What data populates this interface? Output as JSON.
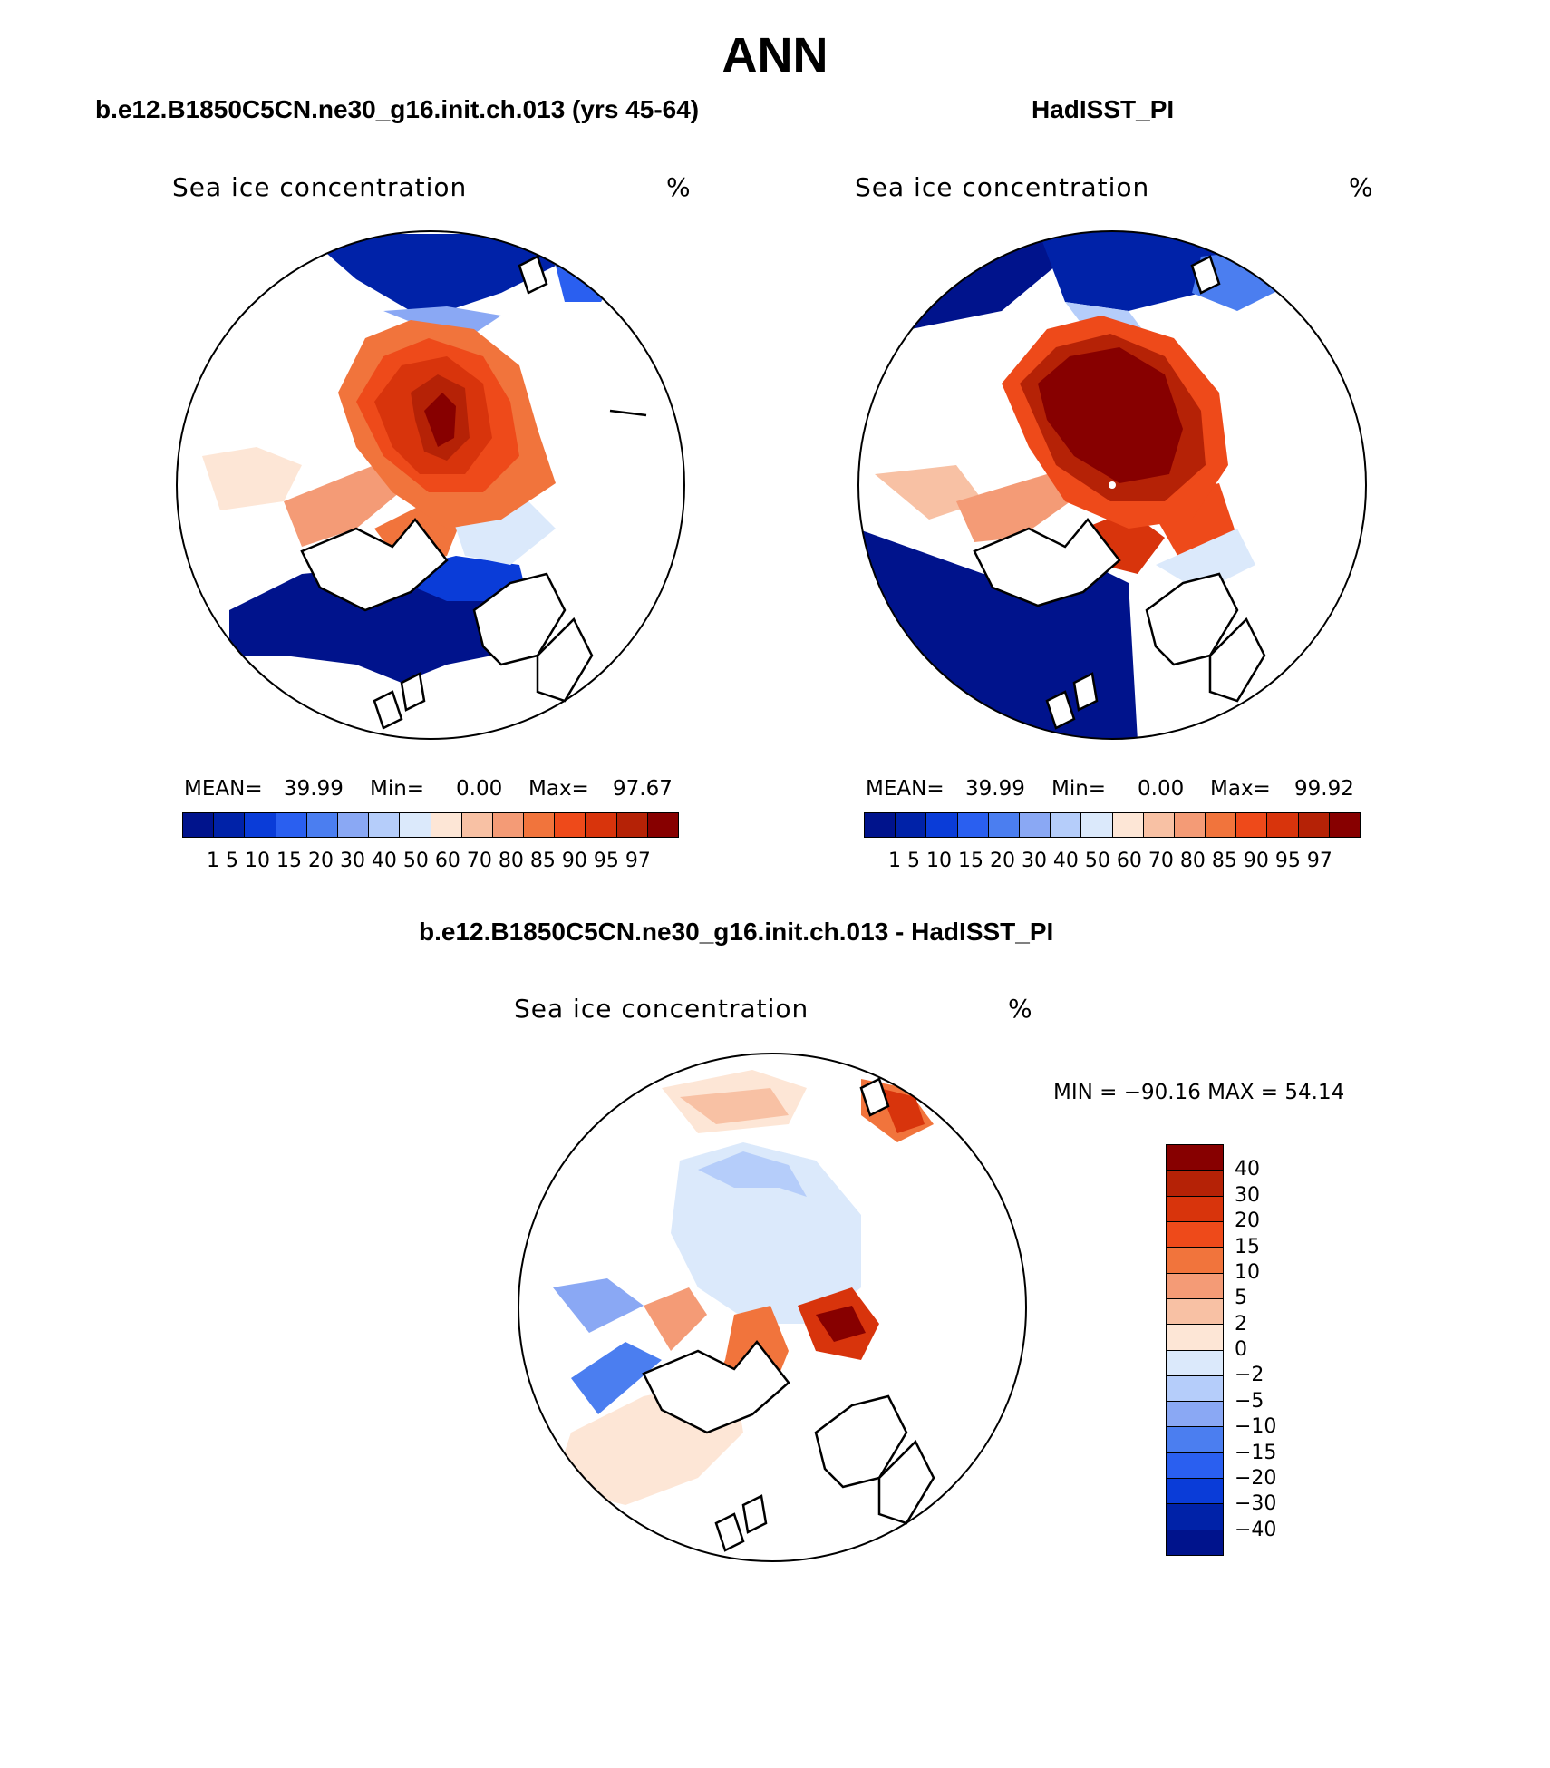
{
  "figure_title": "ANN",
  "panels": [
    {
      "title": "b.e12.B1850C5CN.ne30_g16.init.ch.013 (yrs 45-64)",
      "variable": "Sea ice concentration",
      "units": "%",
      "stats": {
        "mean_label": "MEAN=",
        "mean": "39.99",
        "min_label": "Min=",
        "min": "0.00",
        "max_label": "Max=",
        "max": "97.67"
      }
    },
    {
      "title": "HadISST_PI",
      "variable": "Sea ice concentration",
      "units": "%",
      "stats": {
        "mean_label": "MEAN=",
        "mean": "39.99",
        "min_label": "Min=",
        "min": "0.00",
        "max_label": "Max=",
        "max": "99.92"
      }
    },
    {
      "title": "b.e12.B1850C5CN.ne30_g16.init.ch.013 - HadISST_PI",
      "variable": "Sea ice concentration",
      "units": "%",
      "range_text": "MIN = −90.16  MAX =   54.14"
    }
  ],
  "colorbar_levels": "1  5  10 15 20 30 40 50 60 70 80 85 90 95 97",
  "diff_levels": [
    "40",
    "30",
    "20",
    "15",
    "10",
    "5",
    "2",
    "0",
    "−2",
    "−5",
    "−10",
    "−15",
    "−20",
    "−30",
    "−40"
  ],
  "colors": {
    "conc_scale": [
      "#00138c",
      "#0022a8",
      "#0a3cd8",
      "#2a5ff0",
      "#4b7ef0",
      "#8aa8f4",
      "#b5cdfa",
      "#dbe9fb",
      "#fde6d6",
      "#f8c1a4",
      "#f49b76",
      "#f1743c",
      "#ee4a1a",
      "#d8340c",
      "#b52206",
      "#870000"
    ],
    "diff_scale": [
      "#870000",
      "#b52206",
      "#d8340c",
      "#ee4a1a",
      "#f1743c",
      "#f49b76",
      "#f8c1a4",
      "#fde6d6",
      "#dbe9fb",
      "#b5cdfa",
      "#8aa8f4",
      "#4b7ef0",
      "#2a5ff0",
      "#0a3cd8",
      "#0022a8",
      "#00138c"
    ]
  }
}
